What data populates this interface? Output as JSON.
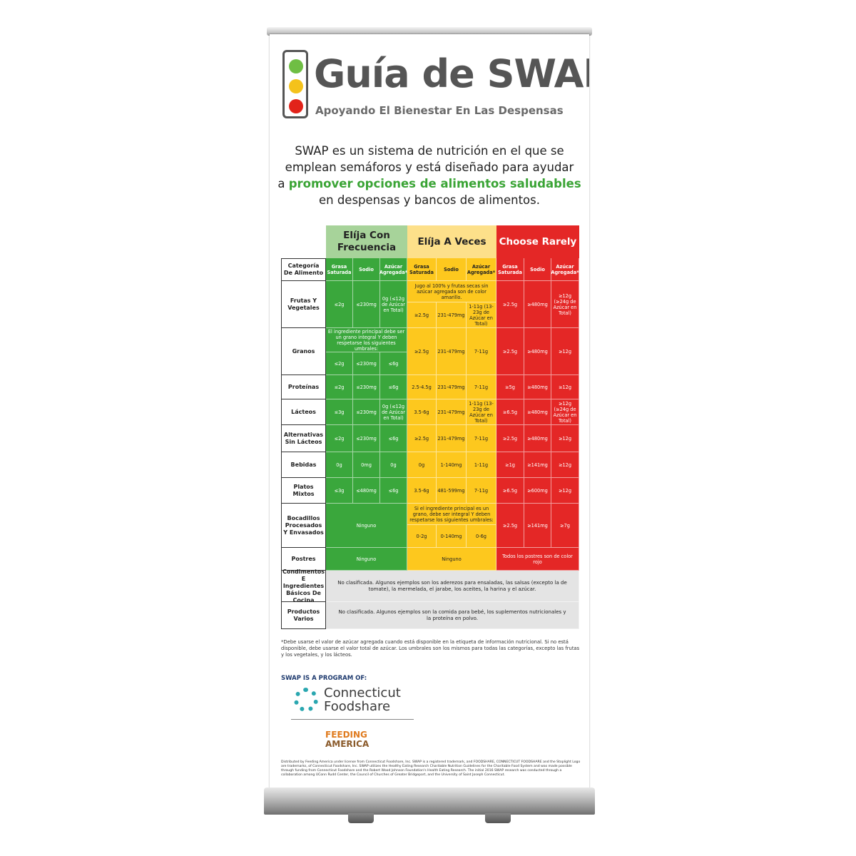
{
  "header": {
    "title": "Guía de SWAP",
    "registered": "®",
    "subtitle": "Apoyando El Bienestar En Las Despensas"
  },
  "intro": {
    "line1": "SWAP es un sistema de nutrición en el que se",
    "line2": "emplean semáforos y está diseñado para ayudar",
    "line3_prefix": "a ",
    "line3_highlight": "promover opciones de alimentos saludables",
    "line4": "en despensas y bancos de alimentos."
  },
  "table": {
    "groups": [
      "Elíja Con Frecuencia",
      "Elíja A Veces",
      "Choose Rarely"
    ],
    "category_header": "Categoría De Alimento",
    "subheaders": [
      "Grasa Saturada",
      "Sodio",
      "Azúcar Agregada*"
    ],
    "rows": {
      "frutas": {
        "label": "Frutas Y Vegetales",
        "g": [
          "≤2g",
          "≤230mg",
          "0g (≤12g de Azúcar en Total)"
        ],
        "y_note": "Jugo al 100% y frutas secas sin azúcar agregada son de color amarillo.",
        "y": [
          "≥2.5g",
          "231-479mg",
          "1-11g (13-23g de Azúcar en Total)"
        ],
        "r": [
          "≥2.5g",
          "≥480mg",
          "≥12g (≥24g de Azúcar en Total)"
        ]
      },
      "granos": {
        "label": "Granos",
        "g_note": "El ingrediente principal debe ser un grano integral Y deben respetarse los siguientes umbrales:",
        "g": [
          "≤2g",
          "≤230mg",
          "≤6g"
        ],
        "y": [
          "≥2.5g",
          "231-479mg",
          "7-11g"
        ],
        "r": [
          "≥2.5g",
          "≥480mg",
          "≥12g"
        ]
      },
      "proteinas": {
        "label": "Proteínas",
        "g": [
          "≤2g",
          "≤230mg",
          "≤6g"
        ],
        "y": [
          "2.5-4.5g",
          "231-479mg",
          "7-11g"
        ],
        "r": [
          "≥5g",
          "≥480mg",
          "≥12g"
        ]
      },
      "lacteos": {
        "label": "Lácteos",
        "g": [
          "≤3g",
          "≤230mg",
          "0g (≤12g de Azúcar en Total)"
        ],
        "y": [
          "3.5-6g",
          "231-479mg",
          "1-11g (13-23g de Azúcar en Total)"
        ],
        "r": [
          "≥6.5g",
          "≥480mg",
          "≥12g (≥24g de Azúcar en Total)"
        ]
      },
      "alternativas": {
        "label": "Alternativas Sin Lácteos",
        "g": [
          "≤2g",
          "≤230mg",
          "≤6g"
        ],
        "y": [
          "≥2.5g",
          "231-479mg",
          "7-11g"
        ],
        "r": [
          "≥2.5g",
          "≥480mg",
          "≥12g"
        ]
      },
      "bebidas": {
        "label": "Bebidas",
        "g": [
          "0g",
          "0mg",
          "0g"
        ],
        "y": [
          "0g",
          "1-140mg",
          "1-11g"
        ],
        "r": [
          "≥1g",
          "≥141mg",
          "≥12g"
        ]
      },
      "platos": {
        "label": "Platos Mixtos",
        "g": [
          "≤3g",
          "≤480mg",
          "≤6g"
        ],
        "y": [
          "3.5-6g",
          "481-599mg",
          "7-11g"
        ],
        "r": [
          "≥6.5g",
          "≥600mg",
          "≥12g"
        ]
      },
      "bocadillos": {
        "label": "Bocadillos Procesados Y Envasados",
        "g_span": "Ninguno",
        "y_note": "Si el ingrediente principal es un grano, debe ser integral Y deben respetarse los siguientes umbrales:",
        "y": [
          "0-2g",
          "0-140mg",
          "0-6g"
        ],
        "r": [
          "≥2.5g",
          "≥141mg",
          "≥7g"
        ]
      },
      "postres": {
        "label": "Postres",
        "g_span": "Ninguno",
        "y_span": "Ninguno",
        "r_span": "Todos los postres son de color rojo"
      },
      "condimentos": {
        "label": "Condimentos E Ingredientes Básicos De Cocina",
        "span": "No clasificada. Algunos ejemplos son los aderezos para ensaladas, las salsas (excepto la de tomate), la mermelada, el jarabe, los aceites, la harina y el azúcar."
      },
      "productos": {
        "label": "Productos Varios",
        "span": "No clasificada. Algunos ejemplos son la comida para bebé, los suplementos nutricionales y la proteína en polvo."
      }
    }
  },
  "footnote": "*Debe usarse el valor de azúcar agregada cuando está disponible en la etiqueta de información nutricional. Si no está disponible, debe usarse el valor total de azúcar. Los umbrales son los mismos para todas las categorías, excepto las frutas y los vegetales, y los lácteos.",
  "program": {
    "label": "SWAP IS A PROGRAM OF:",
    "org1_line1": "Connecticut",
    "org1_line2": "Foodshare",
    "org2_line1": "FEEDING",
    "org2_line2": "AMERICA"
  },
  "legal": "Distributed by Feeding America under license from Connecticut Foodshare, Inc. SWAP is a registered trademark, and FOODSHARE, CONNECTICUT FOODSHARE and the Stoplight Logo are trademarks, of Connecticut Foodshare, Inc. SWAP utilizes the Healthy Eating Research Charitable Nutrition Guidelines for the Charitable Food System and was made possible through funding from Connecticut Foodshare and the Robert Wood Johnson Foundation's Health Eating Research. The initial 2016 SWAP research was conducted through a collaboration among UConn Rudd Center, the Council of Churches of Greater Bridgeport, and the University of Saint Joseph Connecticut.",
  "colors": {
    "green": "#3aa73c",
    "yellow": "#fdc81e",
    "red": "#e42726",
    "gray": "#e4e4e4"
  }
}
